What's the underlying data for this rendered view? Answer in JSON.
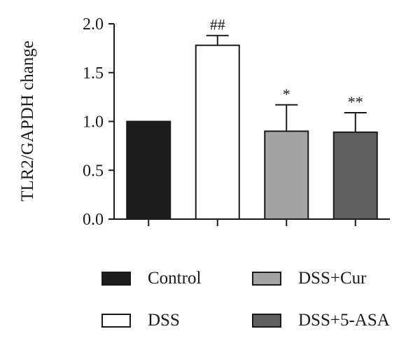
{
  "chart_data": {
    "type": "bar",
    "ylabel": "TLR2/GAPDH change",
    "ylim": [
      0,
      2.0
    ],
    "yticks": [
      "0.0",
      "0.5",
      "1.0",
      "1.5",
      "2.0"
    ],
    "categories": [
      "Control",
      "DSS",
      "DSS+Cur",
      "DSS+5-ASA"
    ],
    "values": [
      1.0,
      1.78,
      0.9,
      0.89
    ],
    "errors": [
      0,
      0.1,
      0.27,
      0.2
    ],
    "annotations": [
      "",
      "##",
      "*",
      "**"
    ],
    "colors": [
      "#1c1c1c",
      "#ffffff",
      "#a3a3a3",
      "#5f5f5f"
    ],
    "legend": [
      {
        "label": "Control",
        "color": "#1c1c1c"
      },
      {
        "label": "DSS+Cur",
        "color": "#a3a3a3"
      },
      {
        "label": "DSS",
        "color": "#ffffff"
      },
      {
        "label": "DSS+5-ASA",
        "color": "#5f5f5f"
      }
    ]
  }
}
